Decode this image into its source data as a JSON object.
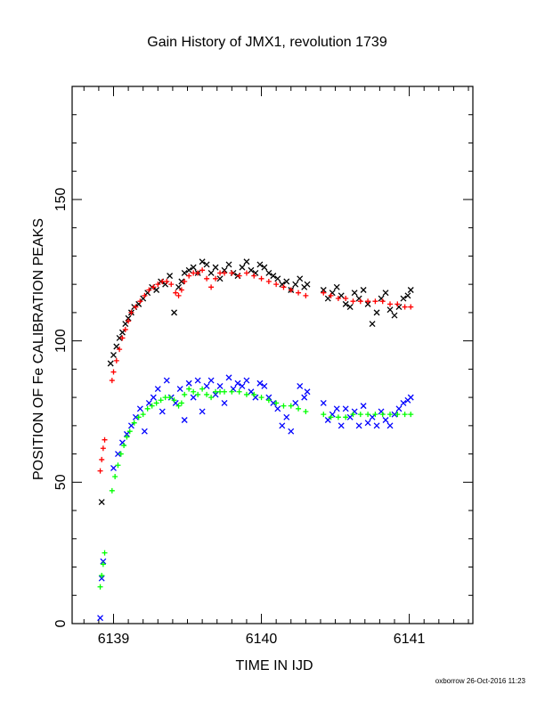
{
  "chart_data": {
    "type": "scatter",
    "title": "Gain History of JMX1, revolution 1739",
    "xlabel": "TIME IN IJD",
    "ylabel": "POSITION OF Fe CALIBRATION PEAKS",
    "xlim": [
      6138.72,
      6141.43
    ],
    "ylim": [
      0,
      190
    ],
    "xticks": [
      6139,
      6140,
      6141
    ],
    "yticks": [
      0,
      50,
      100,
      150
    ],
    "grid": false,
    "legend": "none",
    "series": [
      {
        "marker": "x",
        "color": "#000000",
        "x": [
          6138.92,
          6138.98,
          6139.0,
          6139.02,
          6139.04,
          6139.06,
          6139.08,
          6139.1,
          6139.12,
          6139.14,
          6139.17,
          6139.2,
          6139.23,
          6139.26,
          6139.29,
          6139.32,
          6139.35,
          6139.38,
          6139.41,
          6139.44,
          6139.46,
          6139.48,
          6139.51,
          6139.54,
          6139.57,
          6139.6,
          6139.63,
          6139.66,
          6139.69,
          6139.72,
          6139.75,
          6139.78,
          6139.81,
          6139.84,
          6139.87,
          6139.9,
          6139.93,
          6139.96,
          6139.99,
          6140.02,
          6140.05,
          6140.08,
          6140.11,
          6140.14,
          6140.17,
          6140.2,
          6140.23,
          6140.26,
          6140.29,
          6140.31,
          6140.42,
          6140.45,
          6140.48,
          6140.51,
          6140.54,
          6140.57,
          6140.6,
          6140.63,
          6140.66,
          6140.69,
          6140.72,
          6140.75,
          6140.78,
          6140.81,
          6140.84,
          6140.87,
          6140.9,
          6140.93,
          6140.96,
          6140.99,
          6141.01
        ],
        "y": [
          43,
          92,
          95,
          98,
          101,
          103,
          106,
          108,
          110,
          112,
          113,
          115,
          117,
          119,
          118,
          121,
          120,
          123,
          110,
          119,
          121,
          124,
          125,
          126,
          124,
          128,
          127,
          124,
          126,
          122,
          125,
          127,
          124,
          123,
          126,
          128,
          125,
          124,
          127,
          126,
          124,
          123,
          122,
          120,
          121,
          118,
          120,
          122,
          119,
          120,
          118,
          115,
          117,
          119,
          116,
          113,
          112,
          117,
          115,
          118,
          113,
          106,
          110,
          115,
          117,
          111,
          109,
          112,
          115,
          116,
          118
        ]
      },
      {
        "marker": "+",
        "color": "#ff0000",
        "x": [
          6138.91,
          6138.92,
          6138.93,
          6138.94,
          6138.99,
          6139.0,
          6139.02,
          6139.04,
          6139.06,
          6139.08,
          6139.1,
          6139.12,
          6139.15,
          6139.18,
          6139.21,
          6139.24,
          6139.27,
          6139.3,
          6139.33,
          6139.36,
          6139.39,
          6139.42,
          6139.44,
          6139.46,
          6139.48,
          6139.51,
          6139.54,
          6139.57,
          6139.6,
          6139.63,
          6139.66,
          6139.69,
          6139.72,
          6139.75,
          6139.8,
          6139.85,
          6139.9,
          6139.95,
          6140.0,
          6140.05,
          6140.1,
          6140.15,
          6140.2,
          6140.25,
          6140.3,
          6140.42,
          6140.47,
          6140.52,
          6140.57,
          6140.62,
          6140.67,
          6140.72,
          6140.77,
          6140.82,
          6140.87,
          6140.92,
          6140.97,
          6141.01
        ],
        "y": [
          54,
          58,
          62,
          65,
          86,
          89,
          93,
          97,
          101,
          104,
          107,
          110,
          112,
          114,
          116,
          118,
          119,
          120,
          121,
          121,
          120,
          117,
          116,
          118,
          121,
          123,
          124,
          124,
          125,
          122,
          119,
          122,
          124,
          124,
          124,
          123,
          124,
          123,
          122,
          121,
          120,
          119,
          118,
          117,
          116,
          117,
          116,
          115,
          115,
          114,
          114,
          114,
          114,
          114,
          113,
          113,
          112,
          112
        ]
      },
      {
        "marker": "x",
        "color": "#0000ff",
        "x": [
          6138.91,
          6138.92,
          6138.93,
          6139.0,
          6139.03,
          6139.06,
          6139.09,
          6139.12,
          6139.15,
          6139.18,
          6139.21,
          6139.24,
          6139.27,
          6139.3,
          6139.33,
          6139.36,
          6139.39,
          6139.42,
          6139.45,
          6139.48,
          6139.51,
          6139.54,
          6139.57,
          6139.6,
          6139.63,
          6139.66,
          6139.69,
          6139.72,
          6139.75,
          6139.78,
          6139.81,
          6139.84,
          6139.87,
          6139.9,
          6139.93,
          6139.96,
          6139.99,
          6140.02,
          6140.05,
          6140.08,
          6140.11,
          6140.14,
          6140.17,
          6140.2,
          6140.23,
          6140.26,
          6140.29,
          6140.31,
          6140.42,
          6140.45,
          6140.48,
          6140.51,
          6140.54,
          6140.57,
          6140.6,
          6140.63,
          6140.66,
          6140.69,
          6140.72,
          6140.75,
          6140.78,
          6140.81,
          6140.84,
          6140.87,
          6140.9,
          6140.93,
          6140.96,
          6140.99,
          6141.01
        ],
        "y": [
          2,
          16,
          22,
          55,
          60,
          64,
          67,
          70,
          73,
          76,
          68,
          78,
          80,
          83,
          75,
          86,
          80,
          78,
          83,
          72,
          85,
          80,
          86,
          75,
          84,
          86,
          81,
          84,
          78,
          87,
          83,
          85,
          84,
          86,
          82,
          80,
          85,
          84,
          80,
          78,
          76,
          70,
          73,
          68,
          78,
          84,
          80,
          82,
          78,
          72,
          74,
          76,
          70,
          76,
          73,
          75,
          70,
          77,
          71,
          73,
          70,
          75,
          72,
          70,
          74,
          76,
          78,
          79,
          80
        ]
      },
      {
        "marker": "+",
        "color": "#00ff00",
        "x": [
          6138.91,
          6138.92,
          6138.93,
          6138.94,
          6138.99,
          6139.01,
          6139.03,
          6139.05,
          6139.07,
          6139.09,
          6139.11,
          6139.14,
          6139.17,
          6139.2,
          6139.23,
          6139.26,
          6139.29,
          6139.32,
          6139.35,
          6139.38,
          6139.41,
          6139.44,
          6139.46,
          6139.48,
          6139.51,
          6139.54,
          6139.57,
          6139.6,
          6139.63,
          6139.66,
          6139.69,
          6139.72,
          6139.75,
          6139.8,
          6139.85,
          6139.9,
          6139.95,
          6140.0,
          6140.05,
          6140.1,
          6140.15,
          6140.2,
          6140.25,
          6140.3,
          6140.42,
          6140.47,
          6140.52,
          6140.57,
          6140.62,
          6140.67,
          6140.72,
          6140.77,
          6140.82,
          6140.87,
          6140.92,
          6140.97,
          6141.01
        ],
        "y": [
          13,
          17,
          21,
          25,
          47,
          52,
          56,
          60,
          63,
          66,
          68,
          71,
          73,
          74,
          76,
          77,
          78,
          79,
          80,
          80,
          79,
          77,
          78,
          81,
          83,
          82,
          81,
          83,
          81,
          80,
          82,
          82,
          82,
          82,
          82,
          81,
          81,
          80,
          79,
          78,
          77,
          77,
          76,
          75,
          74,
          73,
          73,
          73,
          74,
          74,
          74,
          74,
          74,
          74,
          74,
          74,
          74
        ]
      }
    ]
  },
  "footer": {
    "credit": "oxborrow 26-Oct-2016 11:23"
  }
}
